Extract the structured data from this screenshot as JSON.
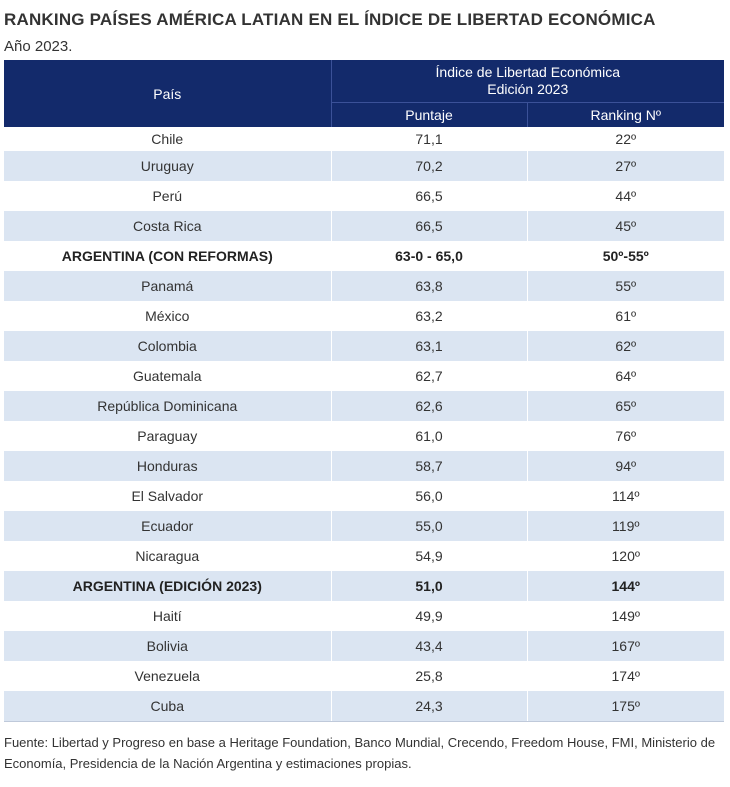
{
  "title": "RANKING PAÍSES AMÉRICA LATIAN EN EL ÍNDICE DE LIBERTAD ECONÓMICA",
  "subtitle": "Año 2023.",
  "table": {
    "header": {
      "pais": "País",
      "group_line1": "Índice de Libertad Económica",
      "group_line2": "Edición 2023",
      "puntaje": "Puntaje",
      "ranking": "Ranking Nº"
    },
    "rows": [
      {
        "pais": "Chile",
        "puntaje": "71,1",
        "ranking": "22º",
        "bold": false
      },
      {
        "pais": "Uruguay",
        "puntaje": "70,2",
        "ranking": "27º",
        "bold": false
      },
      {
        "pais": "Perú",
        "puntaje": "66,5",
        "ranking": "44º",
        "bold": false
      },
      {
        "pais": "Costa Rica",
        "puntaje": "66,5",
        "ranking": "45º",
        "bold": false
      },
      {
        "pais": "ARGENTINA (CON REFORMAS)",
        "puntaje": "63-0 - 65,0",
        "ranking": "50º-55º",
        "bold": true
      },
      {
        "pais": "Panamá",
        "puntaje": "63,8",
        "ranking": "55º",
        "bold": false
      },
      {
        "pais": "México",
        "puntaje": "63,2",
        "ranking": "61º",
        "bold": false
      },
      {
        "pais": "Colombia",
        "puntaje": "63,1",
        "ranking": "62º",
        "bold": false
      },
      {
        "pais": "Guatemala",
        "puntaje": "62,7",
        "ranking": "64º",
        "bold": false
      },
      {
        "pais": "República Dominicana",
        "puntaje": "62,6",
        "ranking": "65º",
        "bold": false
      },
      {
        "pais": "Paraguay",
        "puntaje": "61,0",
        "ranking": "76º",
        "bold": false
      },
      {
        "pais": "Honduras",
        "puntaje": "58,7",
        "ranking": "94º",
        "bold": false
      },
      {
        "pais": "El Salvador",
        "puntaje": "56,0",
        "ranking": "114º",
        "bold": false
      },
      {
        "pais": "Ecuador",
        "puntaje": "55,0",
        "ranking": "119º",
        "bold": false
      },
      {
        "pais": "Nicaragua",
        "puntaje": "54,9",
        "ranking": "120º",
        "bold": false
      },
      {
        "pais": "ARGENTINA (EDICIÓN 2023)",
        "puntaje": "51,0",
        "ranking": "144º",
        "bold": true
      },
      {
        "pais": "Haití",
        "puntaje": "49,9",
        "ranking": "149º",
        "bold": false
      },
      {
        "pais": "Bolivia",
        "puntaje": "43,4",
        "ranking": "167º",
        "bold": false
      },
      {
        "pais": "Venezuela",
        "puntaje": "25,8",
        "ranking": "174º",
        "bold": false
      },
      {
        "pais": "Cuba",
        "puntaje": "24,3",
        "ranking": "175º",
        "bold": false
      }
    ]
  },
  "footer": "Fuente: Libertad y Progreso en base a Heritage Foundation, Banco Mundial, Crecendo, Freedom House, FMI, Ministerio de Economía, Presidencia de la Nación Argentina y estimaciones propias.",
  "colors": {
    "header_bg": "#132a6b",
    "row_alt_bg": "#dbe5f2",
    "text": "#333333"
  }
}
